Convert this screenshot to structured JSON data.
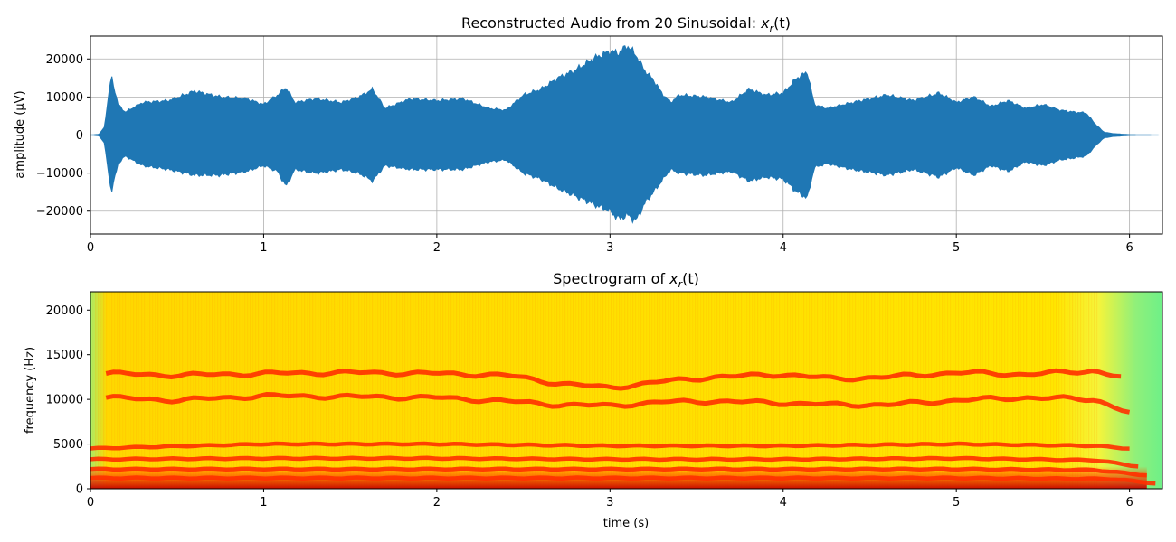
{
  "chart_data": [
    {
      "type": "area",
      "title_main": "Reconstructed Audio from 20 Sinusoidal: ",
      "title_sym": "x",
      "title_sub": "r",
      "title_tail": "(t)",
      "ylabel": "amplitude (μV)",
      "xlim": [
        0,
        6.19
      ],
      "ylim": [
        -26000,
        26000
      ],
      "xticks": [
        "0",
        "1",
        "2",
        "3",
        "4",
        "5",
        "6"
      ],
      "yticks": [
        "20000",
        "10000",
        "0",
        "−10000",
        "−20000"
      ],
      "ytick_values": [
        20000,
        10000,
        0,
        -10000,
        -20000
      ],
      "grid": true,
      "color": "#1f77b4",
      "envelope_t": [
        0,
        0.05,
        0.08,
        0.12,
        0.16,
        0.2,
        0.3,
        0.45,
        0.6,
        0.75,
        0.9,
        1.0,
        1.08,
        1.13,
        1.18,
        1.3,
        1.45,
        1.55,
        1.63,
        1.7,
        1.85,
        2.0,
        2.15,
        2.3,
        2.4,
        2.5,
        2.6,
        2.7,
        2.8,
        2.9,
        3.0,
        3.05,
        3.1,
        3.15,
        3.2,
        3.25,
        3.3,
        3.35,
        3.4,
        3.55,
        3.7,
        3.8,
        3.9,
        4.0,
        4.08,
        4.14,
        4.18,
        4.25,
        4.4,
        4.6,
        4.75,
        4.9,
        5.0,
        5.1,
        5.2,
        5.3,
        5.4,
        5.5,
        5.6,
        5.68,
        5.75,
        5.8,
        5.85,
        5.9,
        6.0,
        6.19
      ],
      "envelope_upper": [
        0,
        200,
        2000,
        15500,
        8000,
        6000,
        8500,
        9000,
        11500,
        10000,
        9500,
        8000,
        10500,
        12500,
        8500,
        9500,
        8500,
        10000,
        12000,
        7000,
        9500,
        9000,
        9500,
        7000,
        6500,
        10500,
        12000,
        15000,
        17000,
        20000,
        22000,
        21500,
        23500,
        21000,
        17000,
        14500,
        11000,
        8500,
        10500,
        10000,
        8500,
        12000,
        10500,
        11000,
        15000,
        16500,
        8000,
        7000,
        8500,
        10500,
        9000,
        11000,
        8500,
        10000,
        7500,
        9000,
        7000,
        8000,
        6500,
        6000,
        5800,
        3000,
        800,
        400,
        100,
        0
      ],
      "envelope_lower": [
        0,
        -200,
        -2000,
        -15000,
        -7500,
        -5500,
        -8000,
        -9000,
        -10500,
        -10500,
        -9500,
        -8000,
        -9500,
        -13500,
        -9000,
        -10000,
        -9000,
        -10000,
        -12000,
        -8000,
        -9000,
        -9000,
        -9000,
        -7000,
        -6500,
        -10000,
        -11500,
        -14000,
        -16000,
        -18000,
        -20000,
        -22000,
        -21000,
        -22500,
        -18000,
        -15000,
        -12000,
        -9000,
        -10000,
        -10500,
        -9500,
        -12000,
        -11000,
        -11500,
        -15000,
        -16500,
        -8500,
        -7500,
        -9000,
        -10500,
        -9000,
        -11000,
        -8500,
        -10500,
        -8000,
        -9500,
        -7000,
        -8000,
        -6500,
        -6000,
        -5500,
        -3000,
        -800,
        -400,
        -100,
        0
      ]
    },
    {
      "type": "heatmap",
      "title_main": "Spectrogram of ",
      "title_sym": "x",
      "title_sub": "r",
      "title_tail": "(t)",
      "xlabel": "time (s)",
      "ylabel": "frequency (Hz)",
      "xlim": [
        0,
        6.19
      ],
      "ylim": [
        0,
        22050
      ],
      "xticks": [
        "0",
        "1",
        "2",
        "3",
        "4",
        "5",
        "6"
      ],
      "yticks": [
        "20000",
        "15000",
        "10000",
        "5000",
        "0"
      ],
      "ytick_values": [
        20000,
        15000,
        10000,
        5000,
        0
      ],
      "colors": {
        "background": "#ffe000",
        "edge": "#7cf27c",
        "band": "#ff3000",
        "low": "#c00000"
      },
      "bands": [
        {
          "t": [
            0.09,
            0.5,
            1.0,
            1.5,
            2.0,
            2.4,
            2.7,
            3.0,
            3.3,
            3.6,
            4.0,
            4.3,
            4.6,
            5.0,
            5.4,
            5.8,
            5.95
          ],
          "f": [
            12900,
            12700,
            12900,
            13000,
            12900,
            12700,
            11800,
            11300,
            12000,
            12500,
            12800,
            12300,
            12500,
            13000,
            12800,
            13200,
            12500
          ]
        },
        {
          "t": [
            0.09,
            0.5,
            1.0,
            1.5,
            2.0,
            2.4,
            2.7,
            3.0,
            3.3,
            3.6,
            4.0,
            4.3,
            4.6,
            5.0,
            5.4,
            5.8,
            6.0
          ],
          "f": [
            10200,
            9900,
            10400,
            10300,
            10200,
            9800,
            9400,
            9300,
            9700,
            9800,
            9600,
            9400,
            9400,
            9900,
            10200,
            10000,
            8500
          ]
        },
        {
          "t": [
            0.0,
            1.0,
            2.0,
            3.0,
            4.0,
            5.0,
            5.8,
            6.0
          ],
          "f": [
            4500,
            5000,
            5000,
            4800,
            4800,
            5000,
            4800,
            4500
          ]
        },
        {
          "t": [
            0.0,
            1.0,
            2.0,
            3.0,
            4.0,
            5.0,
            5.8,
            6.05
          ],
          "f": [
            3300,
            3400,
            3400,
            3300,
            3300,
            3400,
            3200,
            2500
          ]
        },
        {
          "t": [
            0.0,
            1.0,
            2.0,
            3.0,
            4.0,
            5.0,
            5.8,
            6.1
          ],
          "f": [
            2200,
            2200,
            2200,
            2200,
            2200,
            2200,
            2100,
            1500
          ]
        },
        {
          "t": [
            0.0,
            1.0,
            2.0,
            3.0,
            4.0,
            5.0,
            5.9,
            6.15
          ],
          "f": [
            1200,
            1200,
            1200,
            1200,
            1200,
            1200,
            1100,
            600
          ]
        }
      ]
    }
  ]
}
